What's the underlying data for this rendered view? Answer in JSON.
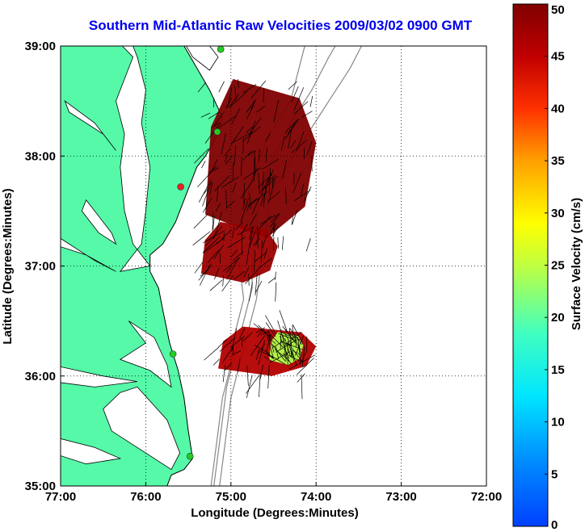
{
  "chart_data": {
    "type": "heatmap",
    "title": "Southern Mid-Atlantic Raw Velocities 2009/03/02 0900 GMT",
    "xlabel": "Longitude (Degrees:Minutes)",
    "ylabel": "Latitude (Degrees:Minutes)",
    "x_ticks": [
      "77:00",
      "76:00",
      "75:00",
      "74:00",
      "73:00",
      "72:00"
    ],
    "y_ticks": [
      "39:00",
      "38:00",
      "37:00",
      "36:00",
      "35:00"
    ],
    "xlim": [
      -77,
      -72
    ],
    "ylim": [
      35,
      39
    ],
    "grid": true,
    "colorbar": {
      "label": "Surface Velocity (cm/s)",
      "ticks": [
        "50",
        "45",
        "40",
        "35",
        "30",
        "25",
        "20",
        "15",
        "10",
        "5",
        "0"
      ],
      "range": [
        0,
        50
      ],
      "colormap": "jet"
    },
    "velocity_regions": [
      {
        "name": "north-patch",
        "lon": [
          -75.3,
          -74.0
        ],
        "lat": [
          37.25,
          38.7
        ],
        "speed": 50
      },
      {
        "name": "central-patch",
        "lon": [
          -75.35,
          -74.45
        ],
        "lat": [
          36.85,
          37.4
        ],
        "speed": 48
      },
      {
        "name": "south-patch",
        "lon": [
          -75.15,
          -74.0
        ],
        "lat": [
          36.0,
          36.45
        ],
        "speed": 46
      },
      {
        "name": "south-slow-core",
        "lon": [
          -74.55,
          -74.15
        ],
        "lat": [
          36.1,
          36.4
        ],
        "speed": 24
      }
    ],
    "stations": [
      {
        "lon": -75.12,
        "lat": 38.97,
        "color": "#22cc22"
      },
      {
        "lon": -75.16,
        "lat": 38.22,
        "color": "#22cc22"
      },
      {
        "lon": -75.59,
        "lat": 37.72,
        "color": "#ee2222"
      },
      {
        "lon": -75.68,
        "lat": 36.2,
        "color": "#22cc22"
      },
      {
        "lon": -75.48,
        "lat": 35.27,
        "color": "#22cc22"
      }
    ],
    "colors": {
      "land": "#55f9a8",
      "coast": "#000000",
      "title": "#0000ee",
      "bathymetry": "#888888"
    }
  }
}
